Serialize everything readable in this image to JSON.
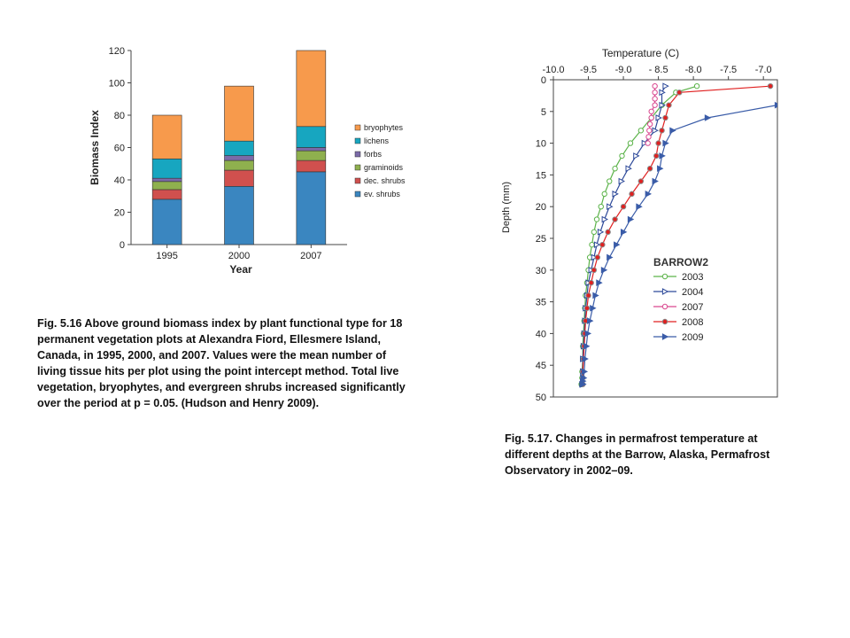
{
  "captions": {
    "fig516": "Fig. 5.16 Above ground biomass index by plant functional type for 18 permanent vegetation plots at Alexandra Fiord, Ellesmere Island, Canada, in 1995, 2000, and 2007. Values were the mean number of living tissue hits per plot using the point intercept method. Total live vegetation, bryophytes, and evergreen shrubs increased significantly over the period at p = 0.05. (Hudson and Henry 2009).",
    "fig517": "Fig. 5.17. Changes in permafrost temperature at different depths at the Barrow, Alaska, Permafrost Observatory in 2002–09."
  },
  "chart_data": [
    {
      "type": "bar",
      "stacked": true,
      "title": "",
      "xlabel": "Year",
      "ylabel": "Biomass Index",
      "categories": [
        "1995",
        "2000",
        "2007"
      ],
      "ylim": [
        0,
        120
      ],
      "yticks": [
        0,
        20,
        40,
        60,
        80,
        100,
        120
      ],
      "legend_position": "right",
      "series": [
        {
          "name": "ev. shrubs",
          "color": "#3a86c0",
          "values": [
            28,
            36,
            45
          ]
        },
        {
          "name": "dec. shrubs",
          "color": "#d0504e",
          "values": [
            6,
            10,
            7
          ]
        },
        {
          "name": "graminoids",
          "color": "#8fb04e",
          "values": [
            5,
            6,
            6
          ]
        },
        {
          "name": "forbs",
          "color": "#7b6aa8",
          "values": [
            2,
            3,
            2
          ]
        },
        {
          "name": "lichens",
          "color": "#17a6c0",
          "values": [
            12,
            9,
            13
          ]
        },
        {
          "name": "bryophytes",
          "color": "#f79a4c",
          "values": [
            27,
            34,
            47
          ]
        }
      ]
    },
    {
      "type": "line",
      "title": "",
      "xlabel": "Temperature (C)",
      "ylabel": "Depth (mm)",
      "x_axis_position": "top",
      "y_inverted": true,
      "xlim": [
        -10.0,
        -6.8
      ],
      "ylim": [
        0,
        50
      ],
      "xtick_labels": [
        "-10.0",
        "-9.5",
        "-9.0",
        "- 8.5",
        "-8.0",
        "-7.5",
        "-7.0"
      ],
      "xtick_values": [
        -10.0,
        -9.5,
        -9.0,
        -8.5,
        -8.0,
        -7.5,
        -7.0
      ],
      "yticks": [
        0,
        5,
        10,
        15,
        20,
        25,
        30,
        35,
        40,
        45,
        50
      ],
      "legend_title": "BARROW2",
      "legend_position": "right",
      "series": [
        {
          "name": "2003",
          "color": "#5cb34a",
          "marker": "circle-open",
          "x": [
            -7.95,
            -8.25,
            -8.45,
            -8.6,
            -8.75,
            -8.9,
            -9.02,
            -9.12,
            -9.2,
            -9.27,
            -9.32,
            -9.38,
            -9.42,
            -9.45,
            -9.48,
            -9.5,
            -9.52,
            -9.54,
            -9.55,
            -9.56,
            -9.57,
            -9.58,
            -9.58,
            -9.59,
            -9.59,
            -9.6,
            -9.6
          ],
          "y": [
            1,
            2,
            4,
            6,
            8,
            10,
            12,
            14,
            16,
            18,
            20,
            22,
            24,
            26,
            28,
            30,
            32,
            34,
            36,
            38,
            40,
            42,
            44,
            46,
            47,
            48,
            48
          ]
        },
        {
          "name": "2004",
          "color": "#2e4a9a",
          "marker": "triangle-right-open",
          "x": [
            -8.4,
            -8.45,
            -8.45,
            -8.5,
            -8.55,
            -8.7,
            -8.82,
            -8.93,
            -9.03,
            -9.12,
            -9.2,
            -9.27,
            -9.33,
            -9.38,
            -9.42,
            -9.46,
            -9.5,
            -9.52,
            -9.54,
            -9.55,
            -9.56,
            -9.57,
            -9.58,
            -9.58,
            -9.58,
            -9.59
          ],
          "y": [
            1,
            2,
            4,
            6,
            8,
            10,
            12,
            14,
            16,
            18,
            20,
            22,
            24,
            26,
            28,
            30,
            32,
            34,
            36,
            38,
            40,
            42,
            44,
            46,
            47,
            48
          ]
        },
        {
          "name": "2007",
          "color": "#d9478f",
          "marker": "circle-open",
          "x": [
            -8.55,
            -8.55,
            -8.55,
            -8.55,
            -8.6,
            -8.6,
            -8.62,
            -8.63,
            -8.64,
            -8.65
          ],
          "y": [
            1,
            2,
            3,
            4,
            5,
            6,
            7,
            8,
            9,
            10
          ]
        },
        {
          "name": "2008",
          "color": "#e02020",
          "marker": "circle-filled",
          "x": [
            -6.9,
            -8.2,
            -8.35,
            -8.4,
            -8.45,
            -8.5,
            -8.53,
            -8.62,
            -8.75,
            -8.88,
            -9.0,
            -9.12,
            -9.22,
            -9.3,
            -9.37,
            -9.42,
            -9.46,
            -9.5,
            -9.52,
            -9.54,
            -9.55,
            -9.56,
            -9.57,
            -9.58,
            -9.58,
            -9.58
          ],
          "y": [
            1,
            2,
            4,
            6,
            8,
            10,
            12,
            14,
            16,
            18,
            20,
            22,
            24,
            26,
            28,
            30,
            32,
            34,
            36,
            38,
            40,
            42,
            44,
            46,
            47,
            48
          ]
        },
        {
          "name": "2009",
          "color": "#3a5ca8",
          "marker": "triangle-right-filled",
          "x": [
            -6.8,
            -7.8,
            -8.3,
            -8.4,
            -8.45,
            -8.48,
            -8.55,
            -8.65,
            -8.78,
            -8.9,
            -9.0,
            -9.1,
            -9.2,
            -9.28,
            -9.35,
            -9.4,
            -9.44,
            -9.48,
            -9.51,
            -9.53,
            -9.55,
            -9.56,
            -9.57,
            -9.58,
            -9.58,
            -9.58
          ],
          "y": [
            4,
            6,
            8,
            10,
            12,
            14,
            16,
            18,
            20,
            22,
            24,
            26,
            28,
            30,
            32,
            34,
            36,
            38,
            40,
            42,
            44,
            46,
            47,
            47.5,
            48,
            48
          ]
        }
      ]
    }
  ]
}
